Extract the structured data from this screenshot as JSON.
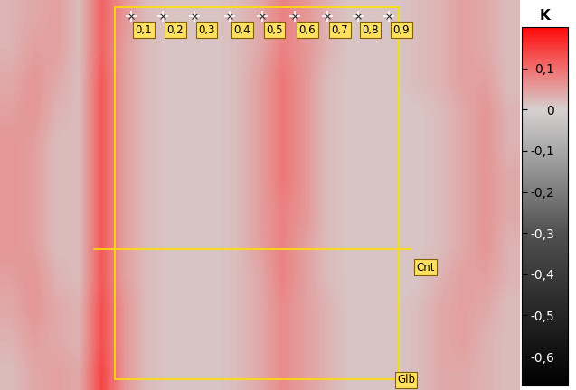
{
  "chart_data": {
    "type": "heatmap",
    "tick_labels": false,
    "cells": [
      [
        0.03,
        0.04,
        0.05,
        0.02,
        0.11,
        0.06,
        0.02,
        0.01,
        0.01,
        0.01,
        0.02,
        0.04,
        0.08,
        0.06,
        0.03,
        0.01,
        0.01,
        0.01,
        0.02,
        0.03,
        0.05,
        0.04,
        0.02
      ],
      [
        0.03,
        0.05,
        0.05,
        0.02,
        0.11,
        0.05,
        0.02,
        0.01,
        0.01,
        0.01,
        0.02,
        0.04,
        0.08,
        0.06,
        0.03,
        0.01,
        0.01,
        0.01,
        0.02,
        0.03,
        0.05,
        0.04,
        0.02
      ],
      [
        0.04,
        0.06,
        0.04,
        0.02,
        0.12,
        0.05,
        0.02,
        0.01,
        0.01,
        0.01,
        0.02,
        0.05,
        0.09,
        0.06,
        0.02,
        0.01,
        0.01,
        0.01,
        0.02,
        0.03,
        0.05,
        0.05,
        0.02
      ],
      [
        0.05,
        0.06,
        0.03,
        0.02,
        0.12,
        0.05,
        0.02,
        0.01,
        0.01,
        0.01,
        0.02,
        0.05,
        0.09,
        0.06,
        0.02,
        0.01,
        0.01,
        0.01,
        0.01,
        0.02,
        0.04,
        0.06,
        0.03
      ],
      [
        0.06,
        0.05,
        0.02,
        0.02,
        0.12,
        0.05,
        0.02,
        0.01,
        0.01,
        0.01,
        0.02,
        0.05,
        0.09,
        0.06,
        0.02,
        0.01,
        0.01,
        0.01,
        0.01,
        0.02,
        0.04,
        0.06,
        0.03
      ],
      [
        0.06,
        0.05,
        0.02,
        0.02,
        0.12,
        0.05,
        0.02,
        0.01,
        0.01,
        0.01,
        0.02,
        0.05,
        0.09,
        0.06,
        0.02,
        0.01,
        0.01,
        0.01,
        0.01,
        0.02,
        0.04,
        0.06,
        0.04
      ],
      [
        0.06,
        0.05,
        0.02,
        0.02,
        0.12,
        0.05,
        0.02,
        0.01,
        0.01,
        0.01,
        0.02,
        0.05,
        0.08,
        0.06,
        0.02,
        0.01,
        0.01,
        0.01,
        0.01,
        0.02,
        0.04,
        0.06,
        0.04
      ],
      [
        0.06,
        0.05,
        0.02,
        0.02,
        0.12,
        0.05,
        0.02,
        0.01,
        0.01,
        0.01,
        0.02,
        0.05,
        0.08,
        0.05,
        0.02,
        0.01,
        0.01,
        0.01,
        0.01,
        0.02,
        0.04,
        0.06,
        0.03
      ],
      [
        0.05,
        0.06,
        0.03,
        0.02,
        0.12,
        0.05,
        0.02,
        0.01,
        0.01,
        0.01,
        0.02,
        0.04,
        0.08,
        0.05,
        0.02,
        0.01,
        0.01,
        0.01,
        0.01,
        0.03,
        0.05,
        0.05,
        0.03
      ],
      [
        0.04,
        0.06,
        0.04,
        0.03,
        0.13,
        0.06,
        0.02,
        0.01,
        0.01,
        0.01,
        0.02,
        0.04,
        0.07,
        0.05,
        0.03,
        0.01,
        0.01,
        0.01,
        0.02,
        0.04,
        0.05,
        0.04,
        0.02
      ],
      [
        0.03,
        0.05,
        0.04,
        0.03,
        0.13,
        0.06,
        0.02,
        0.01,
        0.01,
        0.01,
        0.02,
        0.04,
        0.07,
        0.05,
        0.03,
        0.01,
        0.01,
        0.01,
        0.02,
        0.04,
        0.05,
        0.03,
        0.02
      ],
      [
        0.02,
        0.04,
        0.05,
        0.04,
        0.14,
        0.06,
        0.02,
        0.01,
        0.01,
        0.01,
        0.02,
        0.04,
        0.07,
        0.05,
        0.03,
        0.01,
        0.01,
        0.01,
        0.02,
        0.04,
        0.04,
        0.03,
        0.02
      ]
    ],
    "colorbar": {
      "label": "K",
      "range": [
        -0.67,
        0.2
      ],
      "ticks": [
        {
          "value": 0.1,
          "label": "0,1"
        },
        0,
        {
          "value": -0.1,
          "label": "-0,1"
        },
        {
          "value": -0.2,
          "label": "-0,2"
        },
        {
          "value": -0.3,
          "label": "-0,3"
        },
        {
          "value": -0.4,
          "label": "-0,4"
        },
        {
          "value": -0.5,
          "label": "-0,5"
        },
        {
          "value": -0.6,
          "label": "-0,6"
        }
      ]
    },
    "points": [
      "0,1",
      "0,2",
      "0,3",
      "0,4",
      "0,5",
      "0,6",
      "0,7",
      "0,8",
      "0,9"
    ],
    "line_label": "Cnt",
    "region_label": "Glb"
  }
}
